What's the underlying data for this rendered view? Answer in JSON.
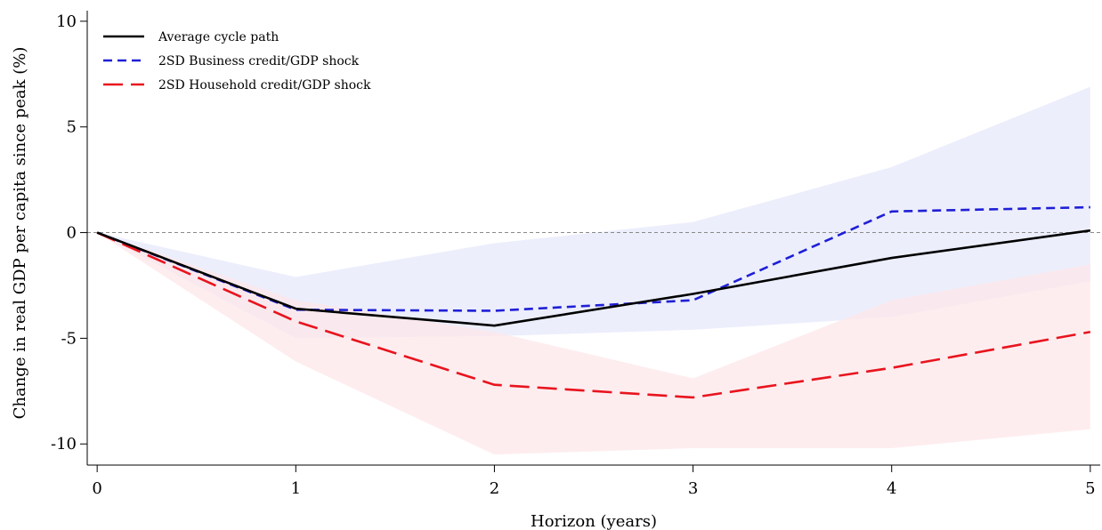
{
  "chart_data": {
    "type": "line",
    "title": "",
    "xlabel": "Horizon (years)",
    "ylabel": "Change in real GDP per capita since peak (%)",
    "x": [
      0,
      1,
      2,
      3,
      4,
      5
    ],
    "xticks": [
      0,
      1,
      2,
      3,
      4,
      5
    ],
    "xlim": [
      -0.05,
      5.05
    ],
    "yticks": [
      10,
      5,
      0,
      -5,
      -10
    ],
    "ylim": [
      -11,
      10.5
    ],
    "zero_line": true,
    "legend_position": "top-left",
    "series": [
      {
        "name": "Average cycle path",
        "color": "#000000",
        "dash": "solid",
        "values": [
          0,
          -3.6,
          -4.4,
          -2.9,
          -1.2,
          0.1
        ]
      },
      {
        "name": "2SD Business credit/GDP shock",
        "color": "#1f1fd6",
        "dash": "short-dash",
        "values": [
          0,
          -3.65,
          -3.7,
          -3.2,
          1.0,
          1.2
        ],
        "band_color": "#e6e8fb",
        "band_lower": [
          0,
          -5.0,
          -4.9,
          -4.6,
          -4.0,
          -2.3
        ],
        "band_upper": [
          0,
          -2.1,
          -0.5,
          0.5,
          3.1,
          6.9
        ]
      },
      {
        "name": "2SD Household credit/GDP shock",
        "color": "#e8141e",
        "dash": "long-dash",
        "values": [
          0,
          -4.2,
          -7.2,
          -7.8,
          -6.4,
          -4.7
        ],
        "band_color": "#fde7e9",
        "band_lower": [
          0,
          -6.1,
          -10.5,
          -10.2,
          -10.2,
          -9.3
        ],
        "band_upper": [
          0,
          -3.2,
          -4.7,
          -6.9,
          -3.2,
          -1.5
        ]
      }
    ]
  }
}
